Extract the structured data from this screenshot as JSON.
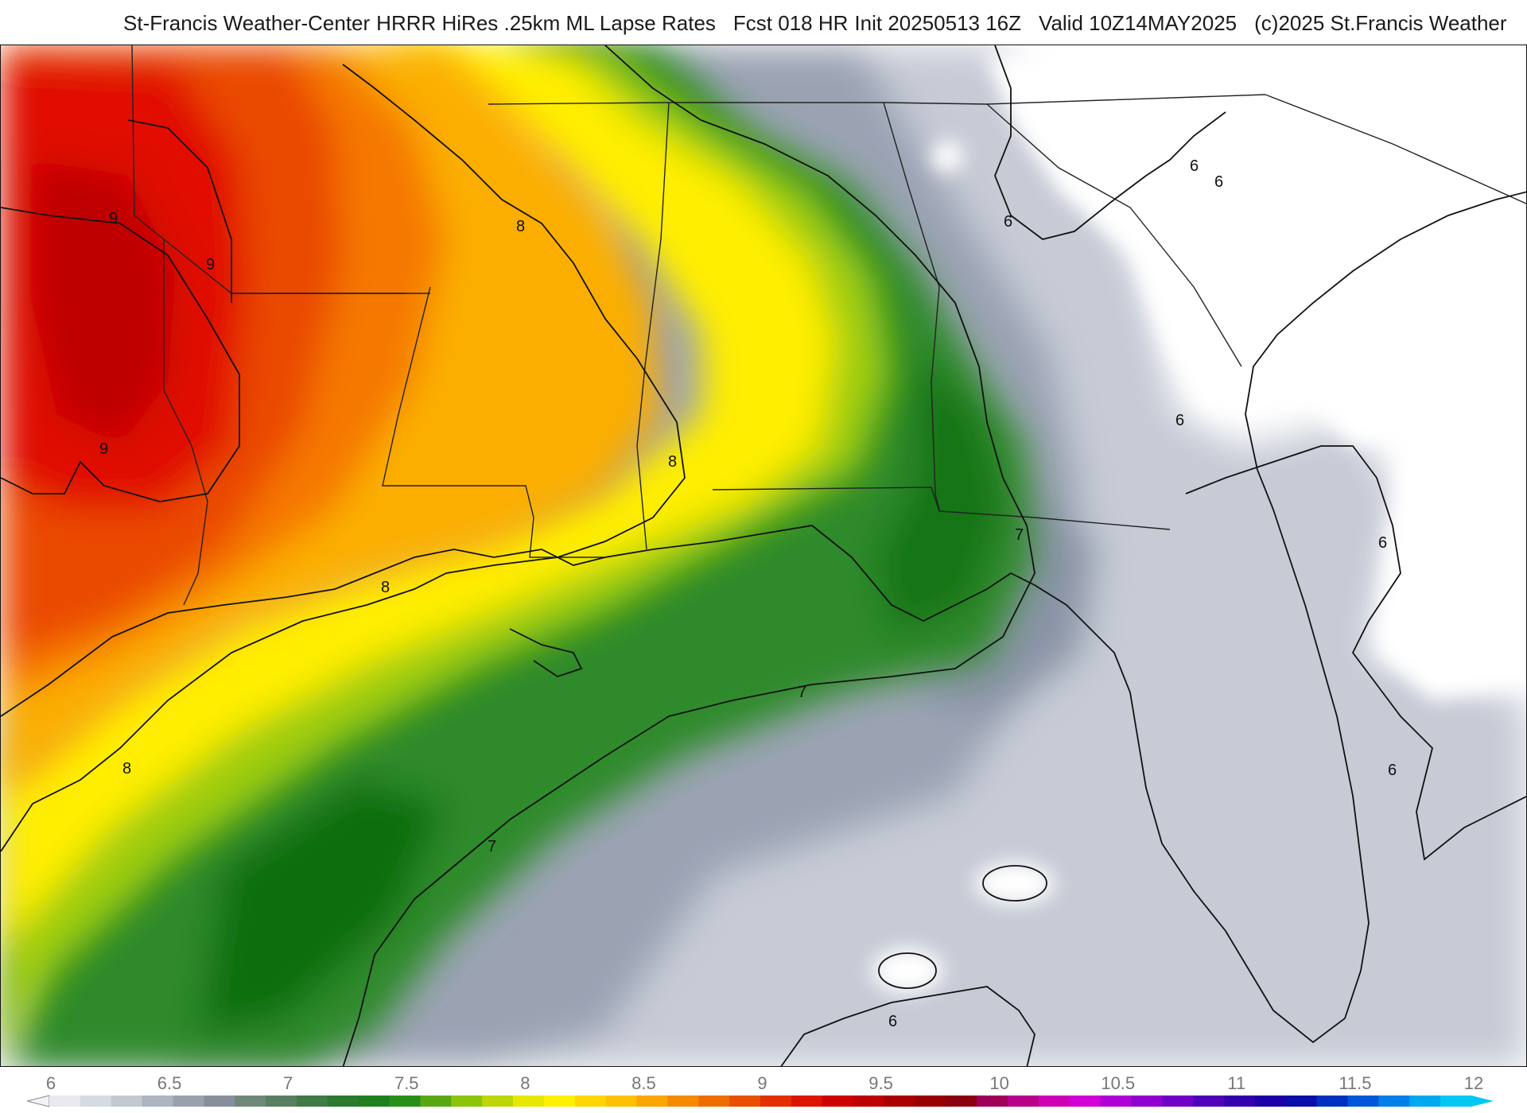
{
  "header": {
    "source": "St-Francis Weather-Center",
    "model": "HRRR HiRes .25km ML Lapse Rates",
    "forecast": "Fcst 018 HR",
    "init": "Init 20250513 16Z",
    "valid": "Valid 10Z14MAY2025",
    "copyright": "(c)2025 St.Francis Weather"
  },
  "contour_labels": {
    "nine": "9",
    "eight": "8",
    "seven": "7",
    "six": "6"
  },
  "colorbar": {
    "ticks": [
      "6",
      "6.5",
      "7",
      "7.5",
      "8",
      "8.5",
      "9",
      "9.5",
      "10",
      "10.5",
      "11",
      "11.5",
      "12"
    ],
    "colors": [
      "#e8eaef",
      "#d6dae2",
      "#c3c8d2",
      "#aeb4c0",
      "#9aa1ae",
      "#878f9c",
      "#6f8879",
      "#587f60",
      "#3f7a47",
      "#2b7a2f",
      "#1f7f1f",
      "#2a8e1a",
      "#58a814",
      "#8cc40c",
      "#bcd606",
      "#e6e800",
      "#fff000",
      "#ffd600",
      "#ffc000",
      "#fba500",
      "#f58a00",
      "#ef6d00",
      "#e84f00",
      "#e23000",
      "#db1500",
      "#cf0000",
      "#bd0000",
      "#aa0000",
      "#990000",
      "#8a0010",
      "#a0005a",
      "#b8008a",
      "#cf00b4",
      "#d200d6",
      "#b000d8",
      "#9000d0",
      "#7000c4",
      "#5000b8",
      "#3400ae",
      "#1c00a8",
      "#0a0ea8",
      "#0030c0",
      "#0058d8",
      "#0080e8",
      "#00a8f0",
      "#00c8f4"
    ]
  },
  "colors": {
    "ocean_low": "#c9ced8",
    "land_low": "#ffffff",
    "red_core": "#e00f00",
    "green_band": "#1f7f1f",
    "yellow_band": "#fff000"
  }
}
